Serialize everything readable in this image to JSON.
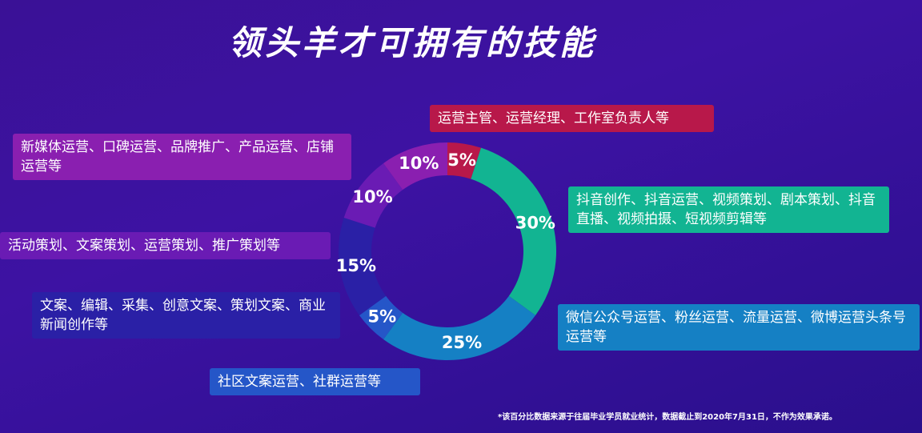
{
  "page": {
    "title": "领头羊才可拥有的技能",
    "footnote": "*该百分比数据来源于往届毕业学员就业统计，数据截止到2020年7月31日，不作为效果承诺。"
  },
  "chart_data": {
    "type": "pie",
    "donut": true,
    "slices": [
      {
        "label": "5%",
        "value": 5,
        "color": "#b8184a",
        "description": "运营主管、运营经理、工作室负责人等"
      },
      {
        "label": "30%",
        "value": 30,
        "color": "#12b492",
        "description": "抖音创作、抖音运营、视频策划、剧本策划、抖音直播、视频拍摄、短视频剪辑等"
      },
      {
        "label": "25%",
        "value": 25,
        "color": "#1580c4",
        "description": "微信公众号运营、粉丝运营、流量运营、微博运营头条号运营等"
      },
      {
        "label": "5%",
        "value": 5,
        "color": "#2556c8",
        "description": "社区文案运营、社群运营等"
      },
      {
        "label": "15%",
        "value": 15,
        "color": "#2a20a6",
        "description": "文案、编辑、采集、创意文案、策划文案、商业新闻创作等"
      },
      {
        "label": "10%",
        "value": 10,
        "color": "#6a1bb4",
        "description": "活动策划、文案策划、运营策划、推广策划等"
      },
      {
        "label": "10%",
        "value": 10,
        "color": "#8a1fb0",
        "description": "新媒体运营、口碑运营、品牌推广、产品运营、店铺运营等"
      }
    ]
  }
}
